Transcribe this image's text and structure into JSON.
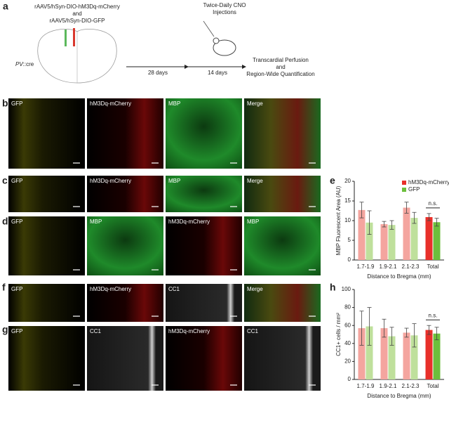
{
  "figure": {
    "panel_letters": [
      "a",
      "b",
      "c",
      "d",
      "e",
      "f",
      "g",
      "h"
    ],
    "schematic": {
      "virus1": "rAAV5/hSyn-DIO-hM3Dq-mCherry",
      "and1": "and",
      "virus2": "rAAV5/hSyn-DIO-GFP",
      "mouse_italic": "PV",
      "mouse_rest": "::cre",
      "days1": "28 days",
      "cno1": "Twice-Daily CNO",
      "cno2": "Injections",
      "days2": "14 days",
      "perf1": "Transcardial Perfusion",
      "perf2": "and",
      "perf3": "Region-Wide Quantification"
    },
    "b": [
      "GFP",
      "hM3Dq-mCherry",
      "MBP",
      "Merge"
    ],
    "c": [
      "GFP",
      "hM3Dq-mCherry",
      "MBP",
      "Merge"
    ],
    "d": [
      "GFP",
      "MBP",
      "hM3Dq-mCherry",
      "MBP"
    ],
    "f": [
      "GFP",
      "hM3Dq-mCherry",
      "CC1",
      "Merge"
    ],
    "g": [
      "GFP",
      "CC1",
      "hM3Dq-mCherry",
      "CC1"
    ]
  },
  "chart_data": [
    {
      "type": "bar",
      "y_label": "MBP Fluorescent Area (AU)",
      "x_label": "Distance to Bregma (mm)",
      "categories": [
        "1.7-1.9",
        "1.9-2.1",
        "2.1-2.3",
        "Total"
      ],
      "series": [
        {
          "name": "hM3Dq-mCherry",
          "color": "#e8302a",
          "bar_colors": [
            "#f4a59f",
            "#f4a59f",
            "#f4a59f",
            "#e8302a"
          ],
          "values": [
            12.7,
            9.1,
            13.3,
            10.9
          ],
          "errors": [
            2.0,
            0.7,
            1.4,
            0.9
          ]
        },
        {
          "name": "GFP",
          "color": "#6cbf3c",
          "bar_colors": [
            "#bfe09c",
            "#bfe09c",
            "#bfe09c",
            "#6cbf3c"
          ],
          "values": [
            9.5,
            8.9,
            10.7,
            9.6
          ],
          "errors": [
            3.0,
            1.1,
            1.4,
            1.0
          ]
        }
      ],
      "ylim": [
        0,
        20
      ],
      "yticks": [
        0,
        5,
        10,
        15,
        20
      ],
      "legend": "upper right",
      "annotation": "n.s."
    },
    {
      "type": "bar",
      "y_label": "CC1+ cells / mm²",
      "x_label": "Distance to Bregma (mm)",
      "categories": [
        "1.7-1.9",
        "1.9-2.1",
        "2.1-2.3",
        "Total"
      ],
      "series": [
        {
          "name": "hM3Dq-mCherry",
          "color": "#e8302a",
          "bar_colors": [
            "#f4a59f",
            "#f4a59f",
            "#f4a59f",
            "#e8302a"
          ],
          "values": [
            57,
            57,
            52,
            55
          ],
          "errors": [
            19,
            10,
            5,
            5
          ]
        },
        {
          "name": "GFP",
          "color": "#6cbf3c",
          "bar_colors": [
            "#bfe09c",
            "#bfe09c",
            "#bfe09c",
            "#6cbf3c"
          ],
          "values": [
            59,
            48,
            49,
            51
          ],
          "errors": [
            21,
            10,
            13,
            7
          ]
        }
      ],
      "ylim": [
        0,
        100
      ],
      "yticks": [
        0,
        20,
        40,
        60,
        80,
        100
      ],
      "annotation": "n.s."
    }
  ]
}
